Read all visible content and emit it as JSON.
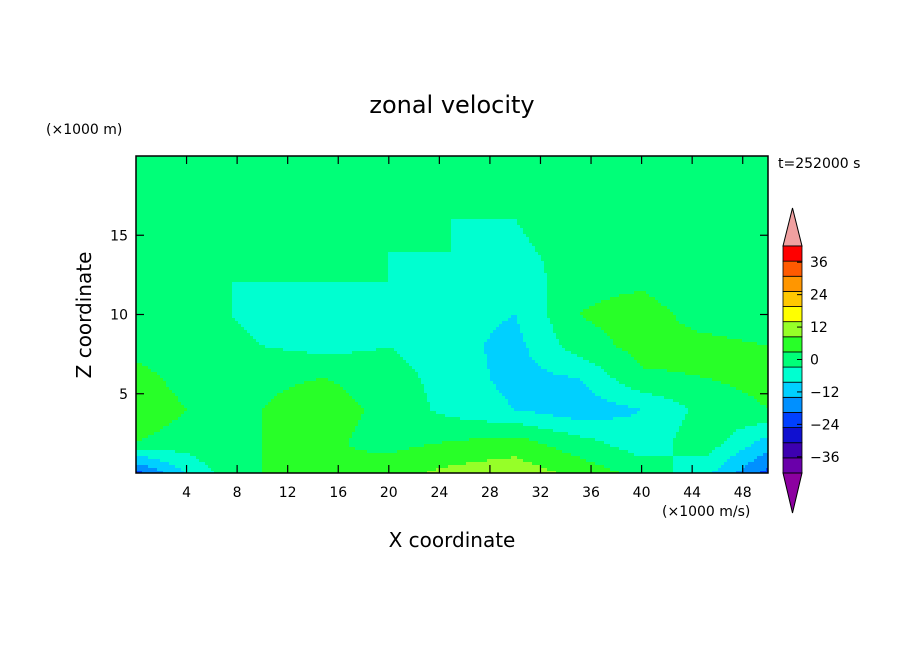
{
  "chart_data": {
    "type": "heatmap",
    "title": "zonal velocity",
    "xlabel": "X coordinate",
    "ylabel": "Z coordinate",
    "x_units": "(×1000 m/s)",
    "y_units": "(×1000 m)",
    "time_label": "t=252000 s",
    "xlim": [
      0,
      50
    ],
    "ylim": [
      0,
      20
    ],
    "x_ticks": [
      4,
      8,
      12,
      16,
      20,
      24,
      28,
      32,
      36,
      40,
      44,
      48
    ],
    "y_ticks": [
      5,
      10,
      15
    ],
    "colorbar": {
      "levels": [
        -42,
        -36,
        -30,
        -24,
        -18,
        -12,
        -6,
        0,
        6,
        12,
        18,
        24,
        30,
        36,
        42
      ],
      "tick_labels": [
        "36",
        "24",
        "12",
        "0",
        "−12",
        "−24",
        "−36"
      ],
      "tick_values": [
        36,
        24,
        12,
        0,
        -12,
        -24,
        -36
      ],
      "colors": [
        "#6a00aa",
        "#3d00b0",
        "#1010d0",
        "#0040ff",
        "#0090ff",
        "#00d0ff",
        "#00ffd0",
        "#00ff78",
        "#28ff28",
        "#96ff28",
        "#ffff00",
        "#ffc800",
        "#ff9600",
        "#ff5a00",
        "#ff0000"
      ],
      "under_color": "#8c00a0",
      "over_color": "#f0a0a0"
    },
    "field_grid": {
      "x": [
        0,
        5,
        10,
        15,
        20,
        25,
        30,
        35,
        40,
        45,
        50
      ],
      "z": [
        0,
        2,
        4,
        6,
        8,
        10,
        12,
        14,
        16,
        18,
        20
      ],
      "values": [
        [
          -20,
          -2,
          6,
          6,
          9,
          14,
          16,
          10,
          4,
          -4,
          -20
        ],
        [
          6,
          3,
          6,
          7,
          4,
          6,
          8,
          2,
          -4,
          4,
          -8
        ],
        [
          10,
          5,
          6,
          9,
          4,
          -2,
          -6,
          -10,
          -6,
          2,
          6
        ],
        [
          8,
          3,
          5,
          6,
          3,
          -3,
          -8,
          -6,
          5,
          6,
          8
        ],
        [
          4,
          2,
          0,
          -2,
          0,
          -4,
          -8,
          3,
          8,
          8,
          6
        ],
        [
          2,
          1,
          -1,
          -1,
          -1,
          -4,
          -6,
          6,
          9,
          3,
          2
        ],
        [
          1,
          0,
          0,
          0,
          0,
          -2,
          -4,
          4,
          5,
          1,
          1
        ],
        [
          1,
          2,
          1,
          0,
          0,
          0,
          -1,
          2,
          2,
          1,
          1
        ],
        [
          3,
          4,
          1,
          0,
          0,
          0,
          0,
          3,
          3,
          2,
          1
        ],
        [
          2,
          3,
          1,
          0,
          0,
          0,
          0,
          4,
          4,
          2,
          1
        ],
        [
          0,
          1,
          0,
          0,
          0,
          0,
          0,
          3,
          3,
          2,
          1
        ]
      ]
    }
  }
}
